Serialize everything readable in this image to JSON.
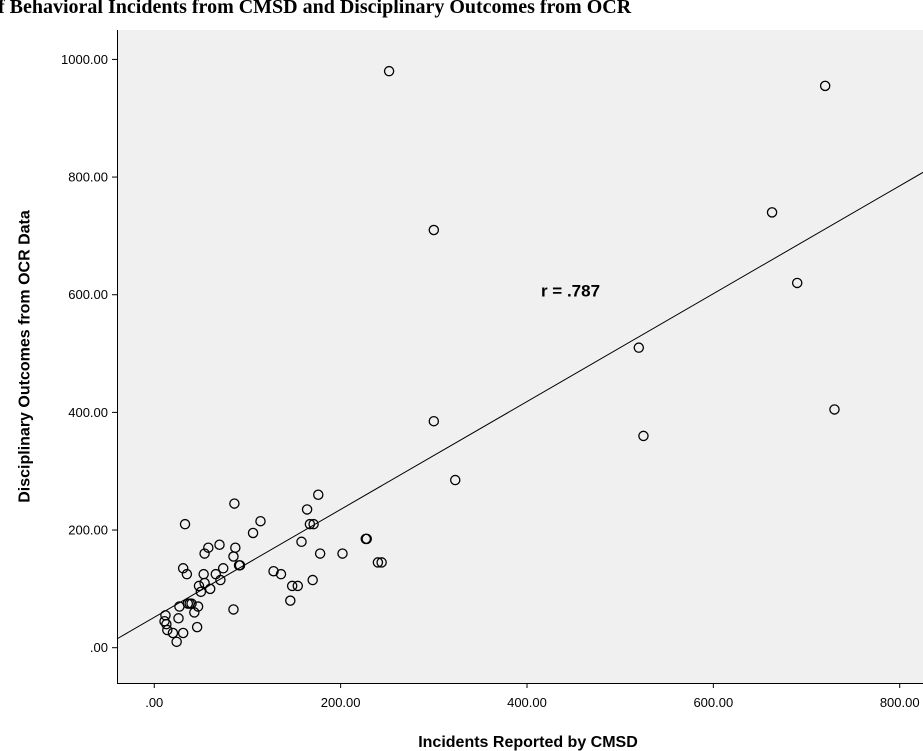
{
  "chart_data": {
    "type": "scatter",
    "title": "of Behavioral Incidents from CMSD and Disciplinary Outcomes from OCR",
    "xlabel": "Incidents Reported by CMSD",
    "ylabel": "Disciplinary Outcomes from OCR Data",
    "xlim": [
      -40,
      825
    ],
    "ylim": [
      -60,
      1050
    ],
    "xticks": [
      0,
      200,
      400,
      600,
      800
    ],
    "xtick_labels": [
      ".00",
      "200.00",
      "400.00",
      "600.00",
      "800.00"
    ],
    "yticks": [
      0,
      200,
      400,
      600,
      800,
      1000
    ],
    "ytick_labels": [
      ".00",
      "200.00",
      "400.00",
      "600.00",
      "800.00",
      "1000.00"
    ],
    "grid": false,
    "background_color": "#f0f0f0",
    "marker": "hollow-circle",
    "annotation": {
      "text": "r = .787",
      "x": 415,
      "y": 597
    },
    "fit_line": {
      "x": [
        -40,
        825
      ],
      "y": [
        15,
        808
      ]
    },
    "points": [
      {
        "x": 252,
        "y": 980
      },
      {
        "x": 720,
        "y": 955
      },
      {
        "x": 300,
        "y": 710
      },
      {
        "x": 663,
        "y": 740
      },
      {
        "x": 690,
        "y": 620
      },
      {
        "x": 520,
        "y": 510
      },
      {
        "x": 730,
        "y": 405
      },
      {
        "x": 525,
        "y": 360
      },
      {
        "x": 300,
        "y": 385
      },
      {
        "x": 323,
        "y": 285
      },
      {
        "x": 86,
        "y": 245
      },
      {
        "x": 33,
        "y": 210
      },
      {
        "x": 114,
        "y": 215
      },
      {
        "x": 106,
        "y": 195
      },
      {
        "x": 176,
        "y": 260
      },
      {
        "x": 164,
        "y": 235
      },
      {
        "x": 167,
        "y": 210
      },
      {
        "x": 171,
        "y": 210
      },
      {
        "x": 158,
        "y": 180
      },
      {
        "x": 178,
        "y": 160
      },
      {
        "x": 202,
        "y": 160
      },
      {
        "x": 227,
        "y": 185
      },
      {
        "x": 228,
        "y": 185
      },
      {
        "x": 240,
        "y": 145
      },
      {
        "x": 244,
        "y": 145
      },
      {
        "x": 70,
        "y": 175
      },
      {
        "x": 87,
        "y": 170
      },
      {
        "x": 58,
        "y": 170
      },
      {
        "x": 54,
        "y": 160
      },
      {
        "x": 85,
        "y": 155
      },
      {
        "x": 91,
        "y": 140
      },
      {
        "x": 92,
        "y": 140
      },
      {
        "x": 74,
        "y": 135
      },
      {
        "x": 66,
        "y": 125
      },
      {
        "x": 71,
        "y": 115
      },
      {
        "x": 60,
        "y": 100
      },
      {
        "x": 128,
        "y": 130
      },
      {
        "x": 136,
        "y": 125
      },
      {
        "x": 170,
        "y": 115
      },
      {
        "x": 148,
        "y": 105
      },
      {
        "x": 154,
        "y": 105
      },
      {
        "x": 146,
        "y": 80
      },
      {
        "x": 85,
        "y": 65
      },
      {
        "x": 31,
        "y": 135
      },
      {
        "x": 35,
        "y": 125
      },
      {
        "x": 53,
        "y": 125
      },
      {
        "x": 54,
        "y": 110
      },
      {
        "x": 48,
        "y": 105
      },
      {
        "x": 50,
        "y": 95
      },
      {
        "x": 36,
        "y": 75
      },
      {
        "x": 38,
        "y": 75
      },
      {
        "x": 40,
        "y": 75
      },
      {
        "x": 47,
        "y": 70
      },
      {
        "x": 27,
        "y": 70
      },
      {
        "x": 43,
        "y": 60
      },
      {
        "x": 26,
        "y": 50
      },
      {
        "x": 12,
        "y": 55
      },
      {
        "x": 11,
        "y": 45
      },
      {
        "x": 13,
        "y": 40
      },
      {
        "x": 14,
        "y": 30
      },
      {
        "x": 20,
        "y": 25
      },
      {
        "x": 31,
        "y": 25
      },
      {
        "x": 46,
        "y": 35
      },
      {
        "x": 24,
        "y": 10
      }
    ]
  }
}
